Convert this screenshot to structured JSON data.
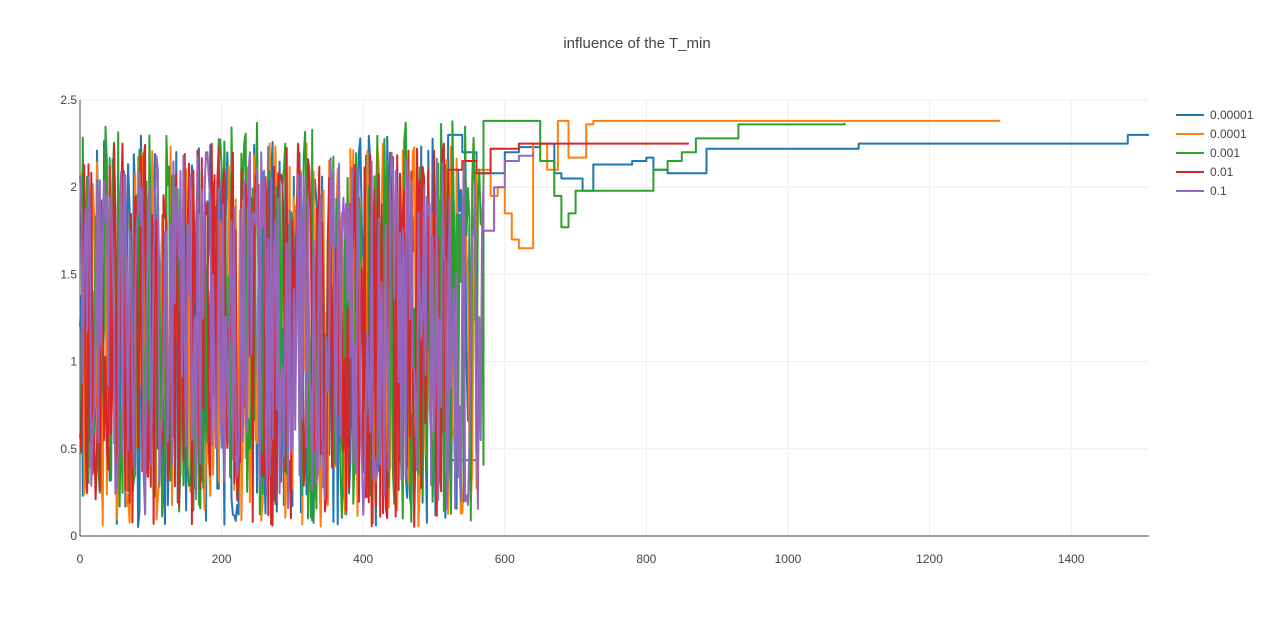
{
  "chart_data": {
    "type": "line",
    "title": "influence of the T_min",
    "xlabel": "",
    "ylabel": "",
    "xlim": [
      0,
      1510
    ],
    "ylim": [
      0,
      2.5
    ],
    "x_ticks": [
      0,
      200,
      400,
      600,
      800,
      1000,
      1200,
      1400
    ],
    "y_ticks": [
      0,
      0.5,
      1,
      1.5,
      2,
      2.5
    ],
    "y_tick_labels": [
      "0",
      "0.5",
      "1",
      "1.5",
      "2",
      "2.5"
    ],
    "grid": true,
    "legend_position": "top-right",
    "series": [
      {
        "name": "0.00001",
        "color": "#1f77b4",
        "noisy": {
          "seed": 11,
          "end": 560,
          "lo": 0.05,
          "hi": 2.3
        },
        "steps": [
          [
            520,
            2.3
          ],
          [
            540,
            2.2
          ],
          [
            560,
            2.08
          ],
          [
            600,
            2.2
          ],
          [
            620,
            2.23
          ],
          [
            650,
            2.25
          ],
          [
            670,
            2.08
          ],
          [
            680,
            2.05
          ],
          [
            710,
            1.98
          ],
          [
            725,
            2.13
          ],
          [
            780,
            2.15
          ],
          [
            800,
            2.17
          ],
          [
            810,
            2.1
          ],
          [
            830,
            2.08
          ],
          [
            860,
            2.08
          ],
          [
            885,
            2.22
          ],
          [
            1100,
            2.25
          ],
          [
            1480,
            2.3
          ],
          [
            1510,
            2.3
          ]
        ]
      },
      {
        "name": "0.0001",
        "color": "#ff7f0e",
        "noisy": {
          "seed": 23,
          "end": 560,
          "lo": 0.05,
          "hi": 2.25
        },
        "steps": [
          [
            560,
            2.1
          ],
          [
            580,
            1.95
          ],
          [
            590,
            2.0
          ],
          [
            600,
            1.85
          ],
          [
            610,
            1.7
          ],
          [
            620,
            1.65
          ],
          [
            640,
            2.25
          ],
          [
            660,
            2.1
          ],
          [
            675,
            2.38
          ],
          [
            690,
            2.17
          ],
          [
            715,
            2.36
          ],
          [
            725,
            2.38
          ],
          [
            1300,
            2.38
          ]
        ]
      },
      {
        "name": "0.001",
        "color": "#2ca02c",
        "noisy": {
          "seed": 37,
          "end": 570,
          "lo": 0.05,
          "hi": 2.38
        },
        "steps": [
          [
            570,
            2.38
          ],
          [
            650,
            2.15
          ],
          [
            670,
            1.95
          ],
          [
            680,
            1.77
          ],
          [
            690,
            1.85
          ],
          [
            700,
            1.98
          ],
          [
            810,
            2.1
          ],
          [
            830,
            2.15
          ],
          [
            850,
            2.2
          ],
          [
            870,
            2.28
          ],
          [
            930,
            2.36
          ],
          [
            1080,
            2.37
          ]
        ]
      },
      {
        "name": "0.01",
        "color": "#d62728",
        "noisy": {
          "seed": 53,
          "end": 520,
          "lo": 0.05,
          "hi": 2.25
        },
        "steps": [
          [
            520,
            2.1
          ],
          [
            540,
            2.15
          ],
          [
            560,
            2.08
          ],
          [
            580,
            2.22
          ],
          [
            620,
            2.25
          ],
          [
            860,
            2.25
          ]
        ]
      },
      {
        "name": "0.1",
        "color": "#9467bd",
        "noisy": {
          "seed": 71,
          "end": 570,
          "lo": 0.3,
          "hi": 2.2
        },
        "steps": [
          [
            570,
            1.75
          ],
          [
            585,
            2.0
          ],
          [
            600,
            2.15
          ],
          [
            620,
            2.18
          ],
          [
            640,
            2.2
          ]
        ]
      }
    ]
  }
}
